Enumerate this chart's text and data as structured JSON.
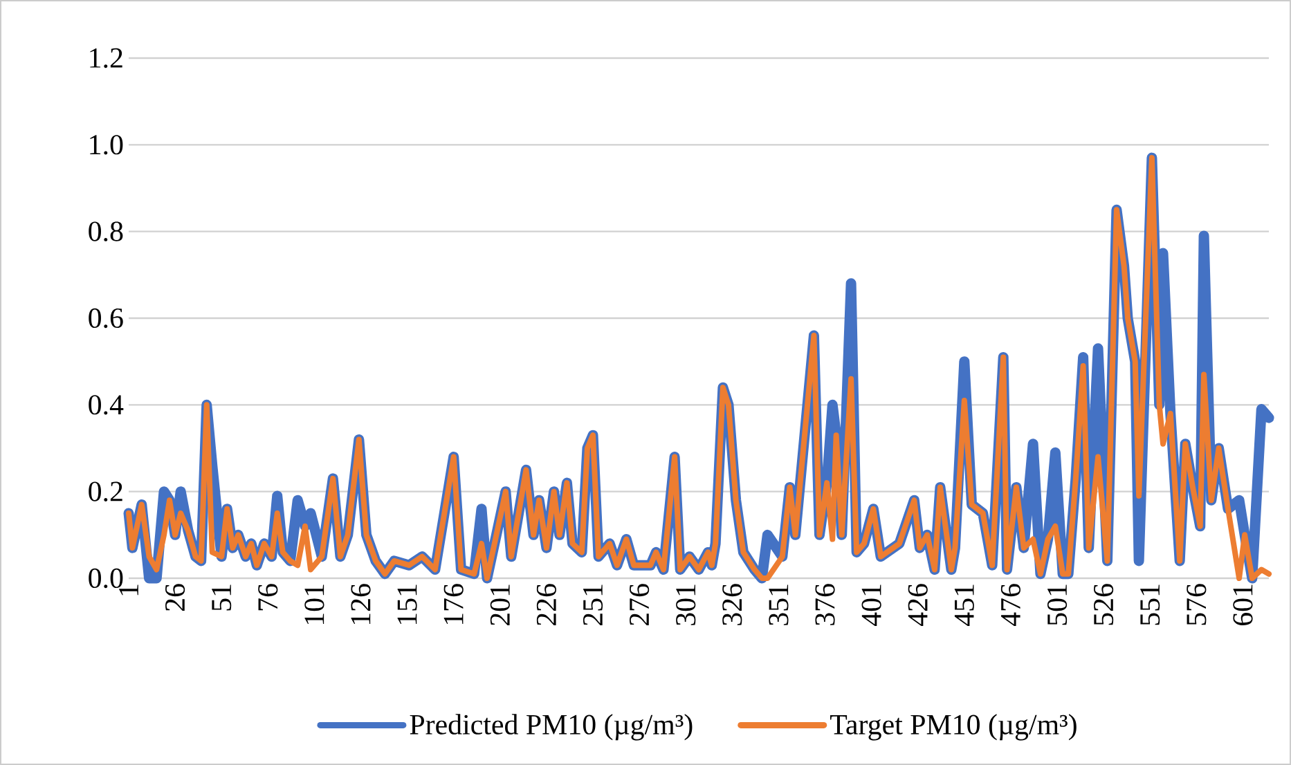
{
  "chart_data": {
    "type": "line",
    "xlim": [
      1,
      615
    ],
    "xticks": [
      1,
      26,
      51,
      76,
      101,
      126,
      151,
      176,
      201,
      226,
      251,
      276,
      301,
      326,
      351,
      376,
      401,
      426,
      451,
      476,
      501,
      526,
      551,
      576,
      601
    ],
    "ylim": [
      0,
      1.2
    ],
    "yticks": [
      {
        "value": 0,
        "label": "0.0"
      },
      {
        "value": 0.2,
        "label": "0.2"
      },
      {
        "value": 0.4,
        "label": "0.4"
      },
      {
        "value": 0.6,
        "label": "0.6"
      },
      {
        "value": 0.8,
        "label": "0.8"
      },
      {
        "value": 1.0,
        "label": "1.0"
      },
      {
        "value": 1.2,
        "label": "1.2"
      }
    ],
    "grid": "y",
    "legend": "bottom",
    "series": [
      {
        "name": "Predicted PM10 (µg/m³)",
        "color": "#4472c4",
        "x": [
          1,
          3,
          6,
          8,
          12,
          16,
          20,
          23,
          26,
          29,
          33,
          37,
          40,
          43,
          46,
          51,
          54,
          57,
          60,
          64,
          67,
          70,
          74,
          78,
          81,
          84,
          88,
          92,
          96,
          99,
          105,
          111,
          115,
          119,
          125,
          129,
          134,
          139,
          144,
          152,
          159,
          166,
          176,
          180,
          187,
          191,
          194,
          204,
          207,
          211,
          215,
          219,
          222,
          226,
          230,
          233,
          237,
          240,
          245,
          248,
          251,
          254,
          260,
          264,
          269,
          273,
          282,
          285,
          289,
          295,
          298,
          303,
          308,
          313,
          315,
          317,
          321,
          324,
          328,
          332,
          338,
          342,
          345,
          353,
          357,
          360,
          370,
          373,
          377,
          380,
          382,
          385,
          390,
          393,
          397,
          402,
          406,
          416,
          424,
          427,
          431,
          435,
          438,
          444,
          446,
          451,
          455,
          461,
          466,
          472,
          474,
          479,
          483,
          488,
          492,
          496,
          500,
          504,
          507,
          511,
          515,
          518,
          523,
          528,
          533,
          537,
          539,
          543,
          545,
          552,
          556,
          558,
          562,
          567,
          570,
          574,
          578,
          580,
          584,
          588,
          593,
          599,
          602,
          606,
          611,
          615
        ],
        "values": [
          0.15,
          0.07,
          0.13,
          0.17,
          0.0,
          0.0,
          0.2,
          0.18,
          0.1,
          0.2,
          0.11,
          0.05,
          0.04,
          0.4,
          0.26,
          0.05,
          0.16,
          0.07,
          0.1,
          0.05,
          0.08,
          0.03,
          0.08,
          0.05,
          0.19,
          0.06,
          0.04,
          0.18,
          0.12,
          0.15,
          0.05,
          0.23,
          0.05,
          0.1,
          0.32,
          0.1,
          0.04,
          0.01,
          0.04,
          0.03,
          0.05,
          0.02,
          0.28,
          0.02,
          0.01,
          0.16,
          0.0,
          0.2,
          0.05,
          0.15,
          0.25,
          0.1,
          0.18,
          0.07,
          0.2,
          0.1,
          0.22,
          0.08,
          0.06,
          0.3,
          0.33,
          0.05,
          0.08,
          0.03,
          0.09,
          0.03,
          0.03,
          0.06,
          0.02,
          0.28,
          0.02,
          0.05,
          0.02,
          0.06,
          0.03,
          0.08,
          0.44,
          0.4,
          0.18,
          0.06,
          0.02,
          0.0,
          0.1,
          0.05,
          0.21,
          0.1,
          0.56,
          0.1,
          0.22,
          0.4,
          0.33,
          0.1,
          0.68,
          0.06,
          0.08,
          0.16,
          0.05,
          0.08,
          0.18,
          0.07,
          0.1,
          0.02,
          0.21,
          0.02,
          0.07,
          0.5,
          0.17,
          0.15,
          0.03,
          0.51,
          0.02,
          0.21,
          0.07,
          0.31,
          0.01,
          0.09,
          0.29,
          0.01,
          0.01,
          0.23,
          0.51,
          0.07,
          0.53,
          0.04,
          0.85,
          0.72,
          0.6,
          0.5,
          0.04,
          0.97,
          0.4,
          0.75,
          0.38,
          0.04,
          0.31,
          0.21,
          0.12,
          0.79,
          0.18,
          0.3,
          0.16,
          0.18,
          0.1,
          0.0,
          0.39,
          0.37
        ]
      },
      {
        "name": "Target PM10 (µg/m³)",
        "color": "#ed7d31",
        "x": [
          1,
          3,
          6,
          8,
          12,
          16,
          20,
          23,
          26,
          29,
          33,
          37,
          40,
          43,
          46,
          51,
          54,
          57,
          60,
          64,
          67,
          70,
          74,
          78,
          81,
          84,
          88,
          92,
          96,
          99,
          105,
          111,
          115,
          119,
          125,
          129,
          134,
          139,
          144,
          152,
          159,
          166,
          176,
          180,
          187,
          191,
          194,
          204,
          207,
          211,
          215,
          219,
          222,
          226,
          230,
          233,
          237,
          240,
          245,
          248,
          251,
          254,
          260,
          264,
          269,
          273,
          282,
          285,
          289,
          295,
          298,
          303,
          308,
          313,
          315,
          317,
          321,
          324,
          328,
          332,
          338,
          342,
          345,
          353,
          357,
          360,
          370,
          373,
          377,
          380,
          382,
          385,
          390,
          393,
          397,
          402,
          406,
          416,
          424,
          427,
          431,
          435,
          438,
          444,
          446,
          451,
          455,
          461,
          466,
          472,
          474,
          479,
          483,
          488,
          492,
          496,
          500,
          504,
          507,
          511,
          515,
          518,
          523,
          528,
          533,
          537,
          539,
          543,
          545,
          552,
          556,
          558,
          562,
          567,
          570,
          574,
          578,
          580,
          584,
          588,
          593,
          599,
          602,
          606,
          611,
          615
        ],
        "values": [
          0.15,
          0.07,
          0.13,
          0.17,
          0.05,
          0.02,
          0.1,
          0.18,
          0.1,
          0.15,
          0.11,
          0.05,
          0.04,
          0.4,
          0.06,
          0.05,
          0.16,
          0.07,
          0.1,
          0.05,
          0.08,
          0.03,
          0.08,
          0.05,
          0.15,
          0.06,
          0.04,
          0.03,
          0.12,
          0.02,
          0.05,
          0.23,
          0.05,
          0.1,
          0.32,
          0.1,
          0.04,
          0.01,
          0.04,
          0.03,
          0.05,
          0.02,
          0.28,
          0.02,
          0.01,
          0.08,
          0.0,
          0.2,
          0.05,
          0.15,
          0.25,
          0.1,
          0.18,
          0.07,
          0.2,
          0.1,
          0.22,
          0.08,
          0.06,
          0.3,
          0.33,
          0.05,
          0.08,
          0.03,
          0.09,
          0.03,
          0.03,
          0.06,
          0.02,
          0.28,
          0.02,
          0.05,
          0.02,
          0.06,
          0.03,
          0.08,
          0.44,
          0.4,
          0.18,
          0.06,
          0.02,
          0.0,
          0.0,
          0.05,
          0.21,
          0.1,
          0.56,
          0.1,
          0.22,
          0.09,
          0.33,
          0.1,
          0.46,
          0.06,
          0.08,
          0.16,
          0.05,
          0.08,
          0.18,
          0.07,
          0.1,
          0.02,
          0.21,
          0.02,
          0.07,
          0.41,
          0.17,
          0.15,
          0.03,
          0.51,
          0.02,
          0.21,
          0.07,
          0.09,
          0.01,
          0.09,
          0.12,
          0.01,
          0.01,
          0.23,
          0.49,
          0.07,
          0.28,
          0.04,
          0.85,
          0.72,
          0.6,
          0.5,
          0.19,
          0.97,
          0.4,
          0.31,
          0.38,
          0.04,
          0.31,
          0.21,
          0.12,
          0.47,
          0.18,
          0.3,
          0.16,
          0.0,
          0.1,
          0.0,
          0.02,
          0.01
        ]
      }
    ]
  }
}
